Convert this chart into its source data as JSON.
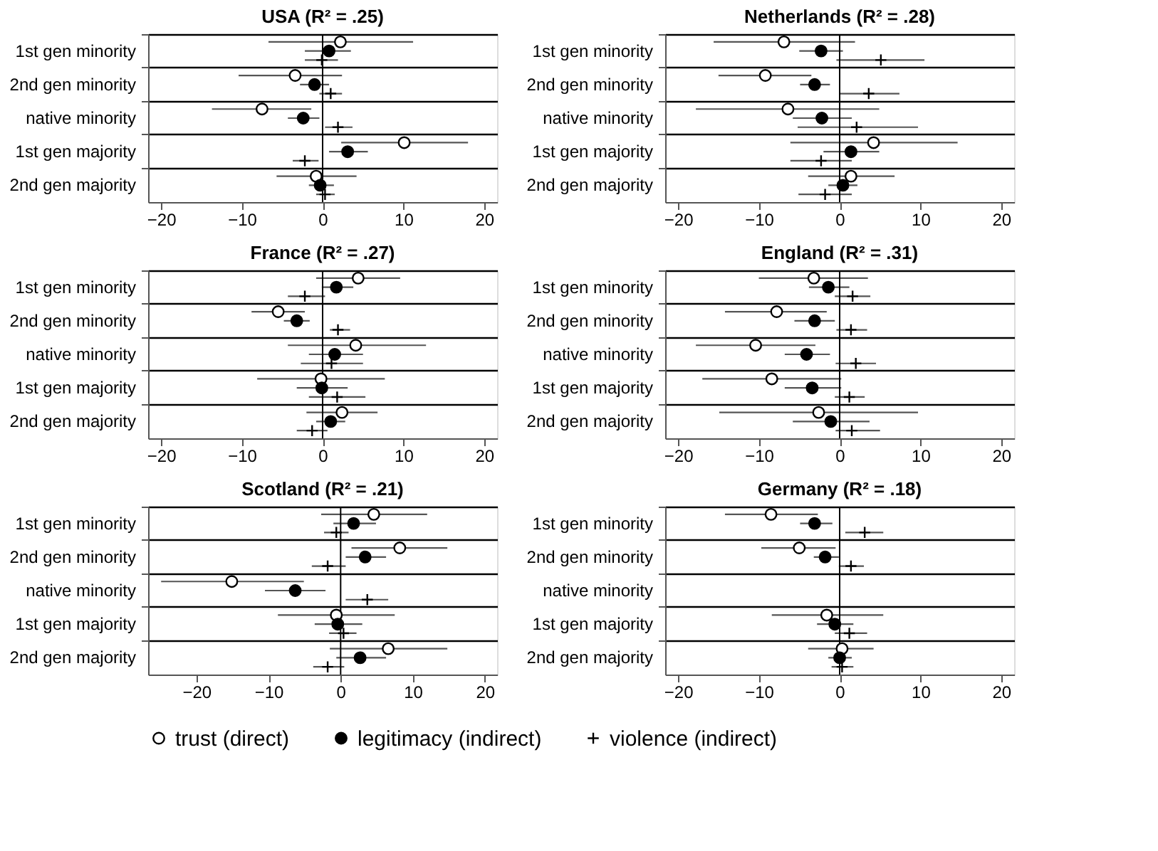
{
  "chart_data": [
    {
      "type": "scatter",
      "orientation": "horizontal",
      "title": "USA (R² = .25)",
      "categories": [
        "1st gen minority",
        "2nd gen minority",
        "native minority",
        "1st gen majority",
        "2nd gen majority"
      ],
      "xlim": [
        -21.6,
        21.6
      ],
      "xticks": [
        -20,
        -10,
        0,
        10,
        20
      ],
      "grid": "y",
      "legend": "bottom",
      "ref_lines": [
        {
          "axis": "x",
          "value": 0
        }
      ],
      "series": [
        {
          "name": "trust (direct)",
          "color": "#ffffff",
          "marker": "circle",
          "values": [
            2.2,
            -3.4,
            -7.5,
            10.1,
            -0.8
          ],
          "errors": [
            [
              -6.7,
              11.2
            ],
            [
              -10.4,
              2.4
            ],
            [
              -13.7,
              -1.4
            ],
            [
              2.3,
              18.0
            ],
            [
              -5.7,
              4.2
            ]
          ]
        },
        {
          "name": "legitimacy (indirect)",
          "color": "#000000",
          "marker": "circle",
          "values": [
            0.8,
            -1.0,
            -2.4,
            3.1,
            -0.3
          ],
          "errors": [
            [
              -2.2,
              3.5
            ],
            [
              -2.8,
              0.8
            ],
            [
              -4.3,
              -0.4
            ],
            [
              0.8,
              5.6
            ],
            [
              -1.7,
              1.4
            ]
          ]
        },
        {
          "name": "violence (indirect)",
          "color": "#000000",
          "marker": "cross",
          "values": [
            -0.1,
            1.0,
            1.9,
            -2.2,
            0.3
          ],
          "errors": [
            [
              -2.2,
              1.9
            ],
            [
              -0.4,
              2.4
            ],
            [
              0.3,
              3.7
            ],
            [
              -3.7,
              -0.5
            ],
            [
              -0.8,
              1.5
            ]
          ]
        }
      ]
    },
    {
      "type": "scatter",
      "orientation": "horizontal",
      "title": "Netherlands (R² = .28)",
      "categories": [
        "1st gen minority",
        "2nd gen minority",
        "native minority",
        "1st gen majority",
        "2nd gen majority"
      ],
      "xlim": [
        -21.6,
        21.6
      ],
      "xticks": [
        -20,
        -10,
        0,
        10,
        20
      ],
      "grid": "y",
      "ref_lines": [
        {
          "axis": "x",
          "value": 0
        }
      ],
      "series": [
        {
          "color": "#ffffff",
          "marker": "circle",
          "values": [
            -6.9,
            -9.2,
            -6.4,
            4.2,
            1.4
          ],
          "errors": [
            [
              -15.6,
              1.9
            ],
            [
              -15.0,
              -3.5
            ],
            [
              -17.8,
              4.9
            ],
            [
              -6.1,
              14.6
            ],
            [
              -3.9,
              6.8
            ]
          ]
        },
        {
          "color": "#000000",
          "marker": "circle",
          "values": [
            -2.3,
            -3.1,
            -2.2,
            1.4,
            0.4
          ],
          "errors": [
            [
              -5.0,
              0.4
            ],
            [
              -4.9,
              -1.2
            ],
            [
              -5.8,
              1.5
            ],
            [
              -2.0,
              4.9
            ],
            [
              -1.4,
              2.2
            ]
          ]
        },
        {
          "color": "#000000",
          "marker": "cross",
          "values": [
            5.1,
            3.6,
            2.1,
            -2.3,
            -1.8
          ],
          "errors": [
            [
              -0.4,
              10.5
            ],
            [
              0.0,
              7.4
            ],
            [
              -5.2,
              9.7
            ],
            [
              -6.1,
              1.5
            ],
            [
              -5.1,
              1.5
            ]
          ]
        }
      ]
    },
    {
      "type": "scatter",
      "orientation": "horizontal",
      "title": "France (R² = .27)",
      "categories": [
        "1st gen minority",
        "2nd gen minority",
        "native minority",
        "1st gen majority",
        "2nd gen majority"
      ],
      "xlim": [
        -21.6,
        21.6
      ],
      "xticks": [
        -20,
        -10,
        0,
        10,
        20
      ],
      "grid": "y",
      "ref_lines": [
        {
          "axis": "x",
          "value": 0
        }
      ],
      "series": [
        {
          "color": "#ffffff",
          "marker": "circle",
          "values": [
            4.4,
            -5.5,
            4.1,
            -0.2,
            2.4
          ],
          "errors": [
            [
              -0.8,
              9.6
            ],
            [
              -8.8,
              -2.2
            ],
            [
              -4.3,
              12.8
            ],
            [
              -8.1,
              7.7
            ],
            [
              -2.0,
              6.8
            ]
          ]
        },
        {
          "color": "#000000",
          "marker": "circle",
          "values": [
            1.7,
            -3.2,
            1.5,
            -0.1,
            1.0
          ],
          "errors": [
            [
              -0.1,
              3.8
            ],
            [
              -4.8,
              -1.6
            ],
            [
              -1.7,
              5.0
            ],
            [
              -3.2,
              3.1
            ],
            [
              -0.8,
              2.8
            ]
          ]
        },
        {
          "color": "#000000",
          "marker": "cross",
          "values": [
            -2.2,
            1.9,
            1.1,
            1.8,
            -1.3
          ],
          "errors": [
            [
              -4.3,
              0.3
            ],
            [
              0.9,
              3.4
            ],
            [
              -2.7,
              5.0
            ],
            [
              -1.7,
              5.3
            ],
            [
              -3.2,
              0.6
            ]
          ]
        }
      ]
    },
    {
      "type": "scatter",
      "orientation": "horizontal",
      "title": "England (R² = .31)",
      "categories": [
        "1st gen minority",
        "2nd gen minority",
        "native minority",
        "1st gen majority",
        "2nd gen majority"
      ],
      "xlim": [
        -21.6,
        21.6
      ],
      "xticks": [
        -20,
        -10,
        0,
        10,
        20
      ],
      "grid": "y",
      "ref_lines": [
        {
          "axis": "x",
          "value": 0
        }
      ],
      "series": [
        {
          "color": "#ffffff",
          "marker": "circle",
          "values": [
            -3.2,
            -7.8,
            -10.4,
            -8.4,
            -2.6
          ],
          "errors": [
            [
              -10.0,
              3.5
            ],
            [
              -14.2,
              -1.6
            ],
            [
              -17.8,
              -3.0
            ],
            [
              -17.0,
              0.2
            ],
            [
              -14.9,
              9.7
            ]
          ]
        },
        {
          "color": "#000000",
          "marker": "circle",
          "values": [
            -1.4,
            -3.1,
            -4.1,
            -3.4,
            -1.1
          ],
          "errors": [
            [
              -3.8,
              1.2
            ],
            [
              -5.6,
              -0.6
            ],
            [
              -6.8,
              -1.2
            ],
            [
              -6.8,
              0.2
            ],
            [
              -5.8,
              3.7
            ]
          ]
        },
        {
          "color": "#000000",
          "marker": "cross",
          "values": [
            1.6,
            1.4,
            2.0,
            1.2,
            1.5
          ],
          "errors": [
            [
              -0.6,
              3.8
            ],
            [
              -0.4,
              3.4
            ],
            [
              -0.5,
              4.5
            ],
            [
              -0.6,
              3.1
            ],
            [
              -0.5,
              5.0
            ]
          ]
        }
      ]
    },
    {
      "type": "scatter",
      "orientation": "horizontal",
      "title": "Scotland (R² = .21)",
      "categories": [
        "1st gen minority",
        "2nd gen minority",
        "native minority",
        "1st gen majority",
        "2nd gen majority"
      ],
      "xlim": [
        -26.7,
        21.7
      ],
      "xticks": [
        -20,
        -10,
        0,
        10,
        20
      ],
      "grid": "y",
      "ref_lines": [
        {
          "axis": "x",
          "value": 0
        }
      ],
      "series": [
        {
          "color": "#ffffff",
          "marker": "circle",
          "values": [
            4.6,
            8.2,
            -15.1,
            -0.6,
            6.6
          ],
          "errors": [
            [
              -2.7,
              12.0
            ],
            [
              1.5,
              14.8
            ],
            [
              -24.9,
              -5.1
            ],
            [
              -8.7,
              7.5
            ],
            [
              -1.5,
              14.8
            ]
          ]
        },
        {
          "color": "#000000",
          "marker": "circle",
          "values": [
            1.8,
            3.4,
            -6.3,
            -0.4,
            2.7
          ],
          "errors": [
            [
              -1.0,
              4.9
            ],
            [
              0.7,
              6.3
            ],
            [
              -10.5,
              -2.1
            ],
            [
              -3.6,
              3.0
            ],
            [
              -0.6,
              6.3
            ]
          ]
        },
        {
          "color": "#000000",
          "marker": "cross",
          "values": [
            -0.6,
            -1.8,
            3.7,
            0.4,
            -1.8
          ],
          "errors": [
            [
              -2.3,
              1.1
            ],
            [
              -4.0,
              0.7
            ],
            [
              0.7,
              6.6
            ],
            [
              -1.6,
              2.2
            ],
            [
              -3.8,
              0.5
            ]
          ]
        }
      ]
    },
    {
      "type": "scatter",
      "orientation": "horizontal",
      "title": "Germany (R² = .18)",
      "categories": [
        "1st gen minority",
        "2nd gen minority",
        "native minority",
        "1st gen majority",
        "2nd gen majority"
      ],
      "xlim": [
        -21.6,
        21.6
      ],
      "xticks": [
        -20,
        -10,
        0,
        10,
        20
      ],
      "grid": "y",
      "ref_lines": [
        {
          "axis": "x",
          "value": 0
        }
      ],
      "series": [
        {
          "color": "#ffffff",
          "marker": "circle",
          "values": [
            -8.5,
            -5.0,
            null,
            -1.6,
            0.3
          ],
          "errors": [
            [
              -14.2,
              -2.7
            ],
            [
              -9.7,
              -0.5
            ],
            null,
            [
              -8.4,
              5.4
            ],
            [
              -3.9,
              4.2
            ]
          ]
        },
        {
          "color": "#000000",
          "marker": "circle",
          "values": [
            -3.1,
            -1.8,
            null,
            -0.6,
            0.0
          ],
          "errors": [
            [
              -4.9,
              -0.9
            ],
            [
              -3.2,
              -0.1
            ],
            null,
            [
              -2.8,
              1.7
            ],
            [
              -1.4,
              1.5
            ]
          ]
        },
        {
          "color": "#000000",
          "marker": "cross",
          "values": [
            3.1,
            1.4,
            null,
            1.2,
            0.3
          ],
          "errors": [
            [
              0.7,
              5.4
            ],
            [
              -0.1,
              3.0
            ],
            null,
            [
              -0.6,
              3.4
            ],
            [
              -1.0,
              1.7
            ]
          ]
        }
      ]
    }
  ]
}
